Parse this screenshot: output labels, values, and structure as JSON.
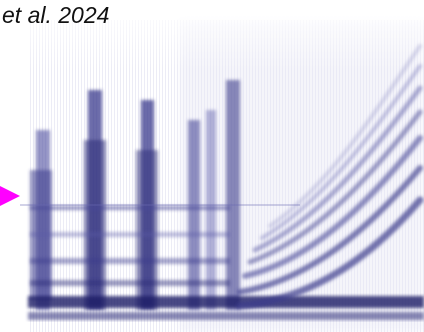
{
  "caption": "et al. 2024",
  "marker": {
    "icon": "triangle-pointer",
    "color": "#ff00ff"
  },
  "colors": {
    "ink": "#2a2a78",
    "ink_light": "#8a8ac4",
    "background": "#ffffff"
  }
}
